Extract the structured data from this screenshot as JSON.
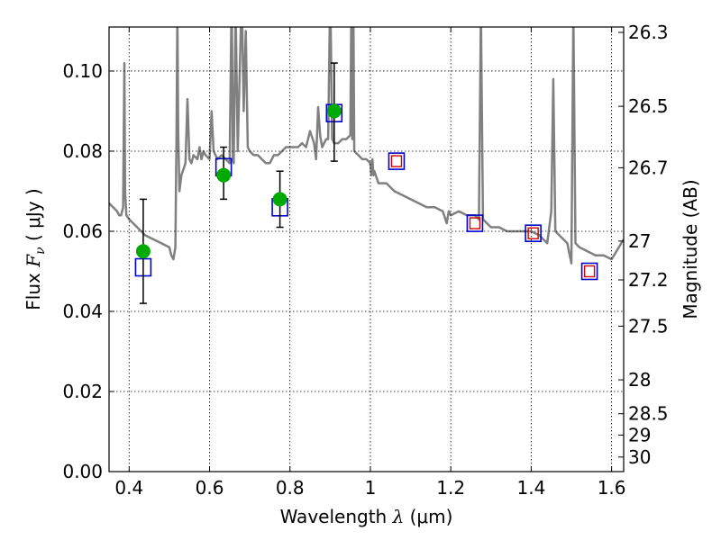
{
  "chart_data": {
    "type": "scatter",
    "xlabel": {
      "pre": "Wavelength  ",
      "sym": "λ",
      "post": " (μm)"
    },
    "ylabel": {
      "pre": "Flux  ",
      "sym": "F",
      "sub": "ν",
      "post": "  (  μJy )"
    },
    "y2label": "Magnitude (AB)",
    "xlim": [
      0.35,
      1.63
    ],
    "ylim": [
      0.0,
      0.111
    ],
    "grid": true,
    "x_ticks": [
      {
        "value": 0.4,
        "label": "0.4"
      },
      {
        "value": 0.6,
        "label": "0.6"
      },
      {
        "value": 0.8,
        "label": "0.8"
      },
      {
        "value": 1.0,
        "label": "1"
      },
      {
        "value": 1.2,
        "label": "1.2"
      },
      {
        "value": 1.4,
        "label": "1.4"
      },
      {
        "value": 1.6,
        "label": "1.6"
      }
    ],
    "y_ticks": [
      {
        "value": 0.0,
        "label": "0.00"
      },
      {
        "value": 0.02,
        "label": "0.02"
      },
      {
        "value": 0.04,
        "label": "0.04"
      },
      {
        "value": 0.06,
        "label": "0.06"
      },
      {
        "value": 0.08,
        "label": "0.08"
      },
      {
        "value": 0.1,
        "label": "0.10"
      }
    ],
    "mag_ticks": [
      {
        "mag": 26.3,
        "label": "26.3"
      },
      {
        "mag": 26.5,
        "label": "26.5"
      },
      {
        "mag": 26.7,
        "label": "26.7"
      },
      {
        "mag": 27.0,
        "label": "27"
      },
      {
        "mag": 27.2,
        "label": "27.2"
      },
      {
        "mag": 27.5,
        "label": "27.5"
      },
      {
        "mag": 28.0,
        "label": "28"
      },
      {
        "mag": 28.5,
        "label": "28.5"
      },
      {
        "mag": 29.0,
        "label": "29"
      },
      {
        "mag": 30.0,
        "label": "30"
      }
    ],
    "colors": {
      "spectrum": "#808080",
      "observed": "#00aa00",
      "errorbar": "#000000",
      "model_box": "#0000cc",
      "model_box_inner": "#cc0000",
      "grid": "#000000"
    },
    "series": [
      {
        "kind": "observed_flux",
        "x": [
          0.435,
          0.635,
          0.775,
          0.91
        ],
        "y": [
          0.055,
          0.074,
          0.068,
          0.09
        ],
        "y_low": [
          0.042,
          0.068,
          0.061,
          0.0775
        ],
        "y_high": [
          0.068,
          0.081,
          0.075,
          0.102
        ]
      },
      {
        "kind": "model_box_blue",
        "x": [
          0.435,
          0.635,
          0.775,
          0.91
        ],
        "y": [
          0.051,
          0.076,
          0.066,
          0.0895
        ]
      },
      {
        "kind": "model_box_red_blue",
        "x": [
          1.065,
          1.26,
          1.405,
          1.545
        ],
        "y": [
          0.0775,
          0.062,
          0.0595,
          0.05
        ]
      },
      {
        "kind": "template_spectrum",
        "x": [
          0.35,
          0.36,
          0.37,
          0.375,
          0.38,
          0.385,
          0.388,
          0.39,
          0.393,
          0.4,
          0.42,
          0.44,
          0.46,
          0.48,
          0.5,
          0.505,
          0.51,
          0.515,
          0.518,
          0.52,
          0.522,
          0.525,
          0.53,
          0.54,
          0.545,
          0.55,
          0.555,
          0.56,
          0.57,
          0.575,
          0.58,
          0.585,
          0.59,
          0.6,
          0.605,
          0.61,
          0.62,
          0.63,
          0.64,
          0.65,
          0.655,
          0.658,
          0.66,
          0.665,
          0.67,
          0.68,
          0.685,
          0.69,
          0.695,
          0.7,
          0.71,
          0.72,
          0.73,
          0.74,
          0.75,
          0.76,
          0.77,
          0.78,
          0.79,
          0.8,
          0.81,
          0.82,
          0.83,
          0.84,
          0.85,
          0.86,
          0.865,
          0.87,
          0.875,
          0.88,
          0.89,
          0.895,
          0.9,
          0.905,
          0.91,
          0.92,
          0.93,
          0.94,
          0.95,
          0.953,
          0.955,
          0.958,
          0.96,
          0.97,
          0.98,
          0.99,
          1.0,
          1.002,
          1.005,
          1.008,
          1.01,
          1.02,
          1.04,
          1.06,
          1.08,
          1.1,
          1.12,
          1.14,
          1.16,
          1.18,
          1.19,
          1.195,
          1.2,
          1.22,
          1.24,
          1.26,
          1.27,
          1.275,
          1.28,
          1.29,
          1.3,
          1.32,
          1.34,
          1.36,
          1.38,
          1.4,
          1.42,
          1.43,
          1.44,
          1.45,
          1.455,
          1.46,
          1.48,
          1.49,
          1.5,
          1.505,
          1.51,
          1.52,
          1.54,
          1.56,
          1.58,
          1.6,
          1.63
        ],
        "y": [
          0.067,
          0.066,
          0.065,
          0.064,
          0.064,
          0.066,
          0.102,
          0.07,
          0.064,
          0.063,
          0.061,
          0.059,
          0.058,
          0.057,
          0.056,
          0.054,
          0.053,
          0.056,
          0.085,
          0.115,
          0.085,
          0.07,
          0.074,
          0.077,
          0.093,
          0.078,
          0.077,
          0.079,
          0.078,
          0.081,
          0.078,
          0.08,
          0.079,
          0.078,
          0.09,
          0.08,
          0.078,
          0.079,
          0.078,
          0.077,
          0.12,
          0.078,
          0.077,
          0.115,
          0.08,
          0.12,
          0.09,
          0.11,
          0.081,
          0.08,
          0.079,
          0.079,
          0.078,
          0.077,
          0.077,
          0.079,
          0.079,
          0.08,
          0.081,
          0.081,
          0.081,
          0.081,
          0.082,
          0.081,
          0.085,
          0.082,
          0.078,
          0.091,
          0.084,
          0.081,
          0.083,
          0.083,
          0.12,
          0.083,
          0.082,
          0.082,
          0.083,
          0.083,
          0.084,
          0.12,
          0.083,
          0.112,
          0.08,
          0.079,
          0.078,
          0.078,
          0.077,
          0.074,
          0.078,
          0.074,
          0.075,
          0.072,
          0.072,
          0.07,
          0.069,
          0.068,
          0.067,
          0.066,
          0.066,
          0.065,
          0.062,
          0.065,
          0.064,
          0.065,
          0.064,
          0.064,
          0.063,
          0.115,
          0.063,
          0.062,
          0.061,
          0.061,
          0.06,
          0.06,
          0.06,
          0.06,
          0.059,
          0.058,
          0.057,
          0.065,
          0.098,
          0.06,
          0.058,
          0.057,
          0.052,
          0.115,
          0.057,
          0.056,
          0.055,
          0.054,
          0.054,
          0.053,
          0.058
        ]
      }
    ]
  }
}
